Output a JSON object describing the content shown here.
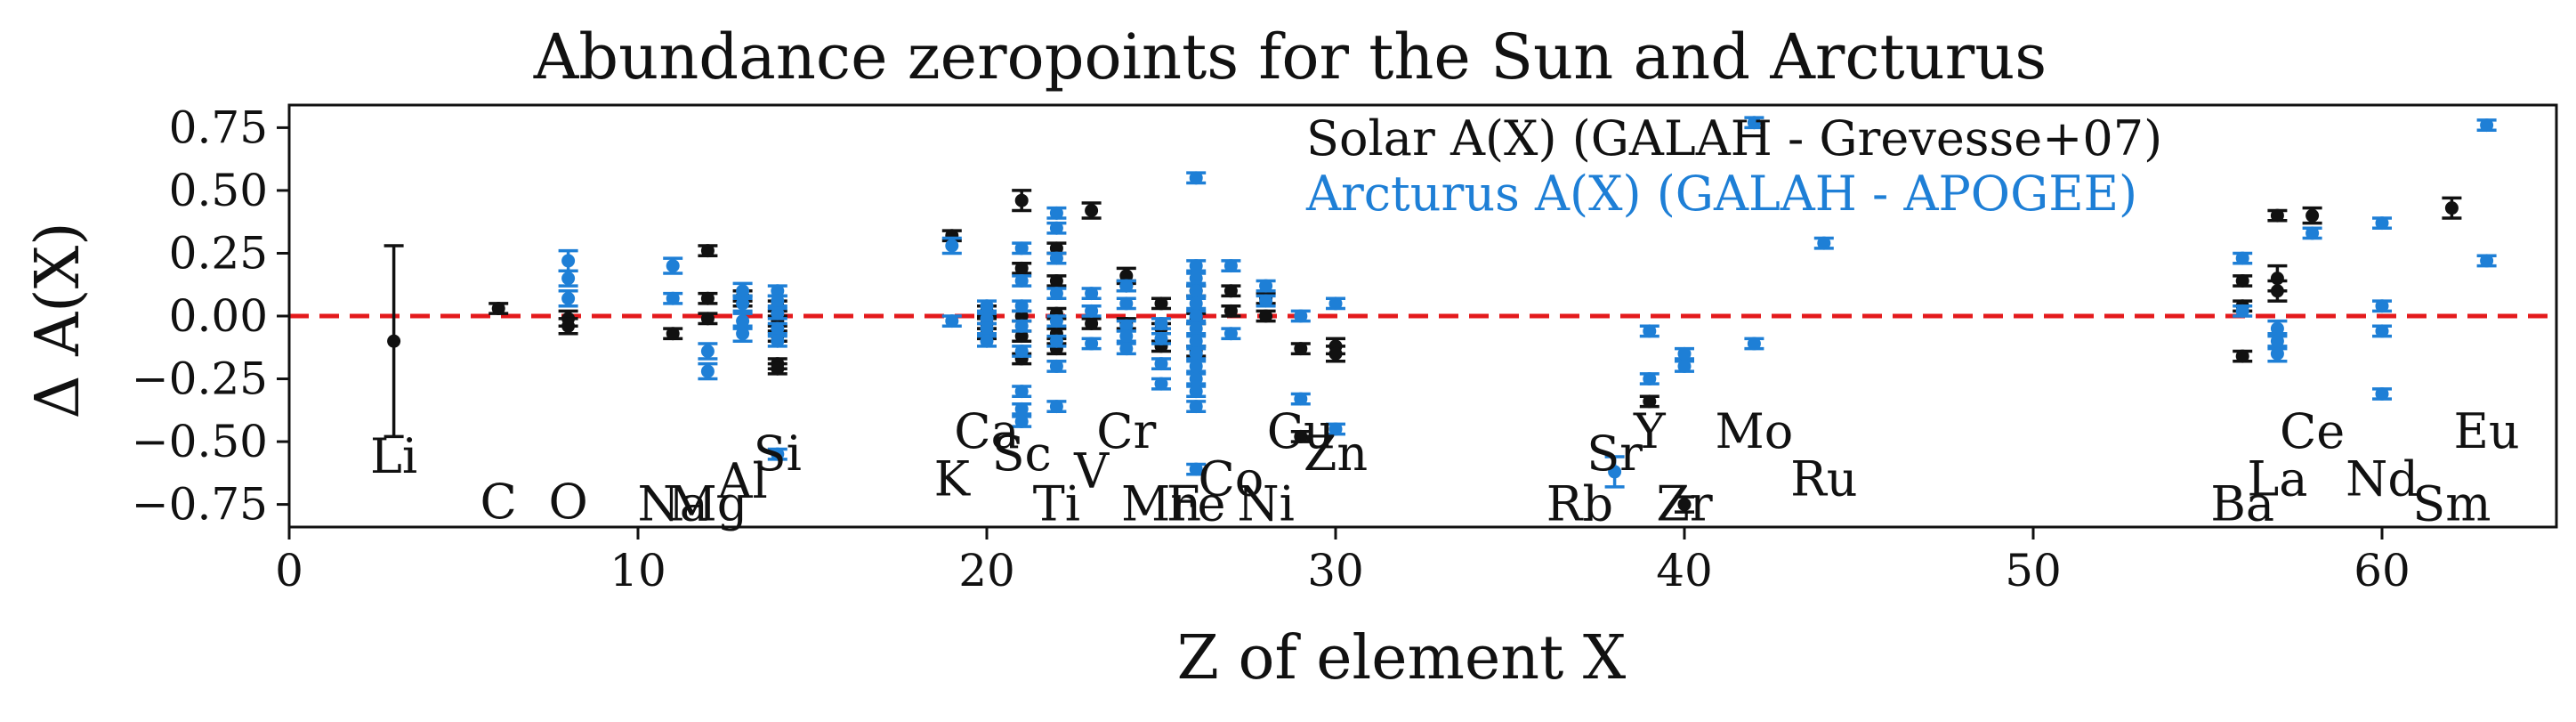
{
  "colors": {
    "solar": "#111111",
    "arcturus": "#1e7fd6",
    "zero_line": "#e41a1c"
  },
  "chart_data": {
    "type": "scatter",
    "title": "Abundance zeropoints for the Sun and Arcturus",
    "xlabel": "Z of element X",
    "ylabel": "Δ A(X)",
    "xlim": [
      0,
      65
    ],
    "ylim": [
      -0.84,
      0.84
    ],
    "xticks": [
      0,
      10,
      20,
      30,
      40,
      50,
      60
    ],
    "yticks": [
      -0.75,
      -0.5,
      -0.25,
      0.0,
      0.25,
      0.5,
      0.75
    ],
    "ytick_labels": [
      "−0.75",
      "−0.50",
      "−0.25",
      "0.00",
      "0.25",
      "0.50",
      "0.75"
    ],
    "grid": false,
    "zero_line": {
      "y": 0,
      "style": "dashed"
    },
    "legend": {
      "placement": "top-center",
      "entries": [
        {
          "text": "Solar A(X) (GALAH - Grevesse+07)",
          "color": "#111111"
        },
        {
          "text": "Arcturus A(X) (GALAH - APOGEE)",
          "color": "#1e7fd6"
        }
      ]
    },
    "element_labels": [
      {
        "text": "Li",
        "x": 3,
        "y": -0.56
      },
      {
        "text": "C",
        "x": 6,
        "y": -0.74
      },
      {
        "text": "O",
        "x": 8,
        "y": -0.74
      },
      {
        "text": "Na",
        "x": 11,
        "y": -0.75
      },
      {
        "text": "Mg",
        "x": 12,
        "y": -0.75
      },
      {
        "text": "Al",
        "x": 13,
        "y": -0.66
      },
      {
        "text": "Si",
        "x": 14,
        "y": -0.55
      },
      {
        "text": "K",
        "x": 19,
        "y": -0.65
      },
      {
        "text": "Ca",
        "x": 20,
        "y": -0.46
      },
      {
        "text": "Sc",
        "x": 21,
        "y": -0.55
      },
      {
        "text": "Ti",
        "x": 22,
        "y": -0.75
      },
      {
        "text": "V",
        "x": 23,
        "y": -0.62
      },
      {
        "text": "Cr",
        "x": 24,
        "y": -0.46
      },
      {
        "text": "Mn",
        "x": 25,
        "y": -0.75
      },
      {
        "text": "Fe",
        "x": 26,
        "y": -0.75
      },
      {
        "text": "Co",
        "x": 27,
        "y": -0.65
      },
      {
        "text": "Ni",
        "x": 28,
        "y": -0.75
      },
      {
        "text": "Cu",
        "x": 29,
        "y": -0.46
      },
      {
        "text": "Zn",
        "x": 30,
        "y": -0.55
      },
      {
        "text": "Rb",
        "x": 37,
        "y": -0.75
      },
      {
        "text": "Sr",
        "x": 38,
        "y": -0.55
      },
      {
        "text": "Y",
        "x": 39,
        "y": -0.46
      },
      {
        "text": "Zr",
        "x": 40,
        "y": -0.75
      },
      {
        "text": "Mo",
        "x": 42,
        "y": -0.46
      },
      {
        "text": "Ru",
        "x": 44,
        "y": -0.65
      },
      {
        "text": "Ba",
        "x": 56,
        "y": -0.75
      },
      {
        "text": "La",
        "x": 57,
        "y": -0.65
      },
      {
        "text": "Ce",
        "x": 58,
        "y": -0.46
      },
      {
        "text": "Nd",
        "x": 60,
        "y": -0.65
      },
      {
        "text": "Sm",
        "x": 62,
        "y": -0.75
      },
      {
        "text": "Eu",
        "x": 63,
        "y": -0.46
      }
    ],
    "series": [
      {
        "name": "Solar A(X) (GALAH - Grevesse+07)",
        "color": "#111111",
        "points": [
          {
            "x": 3,
            "y": -0.1,
            "err": 0.38
          },
          {
            "x": 6,
            "y": 0.03,
            "err": 0.02
          },
          {
            "x": 8,
            "y": -0.01,
            "err": 0.03
          },
          {
            "x": 8,
            "y": -0.04,
            "err": 0.03
          },
          {
            "x": 11,
            "y": -0.07,
            "err": 0.02
          },
          {
            "x": 12,
            "y": 0.07,
            "err": 0.02
          },
          {
            "x": 12,
            "y": -0.01,
            "err": 0.02
          },
          {
            "x": 12,
            "y": 0.26,
            "err": 0.02
          },
          {
            "x": 13,
            "y": 0.08,
            "err": 0.02
          },
          {
            "x": 13,
            "y": 0.06,
            "err": 0.02
          },
          {
            "x": 14,
            "y": 0.04,
            "err": 0.02
          },
          {
            "x": 14,
            "y": -0.02,
            "err": 0.02
          },
          {
            "x": 14,
            "y": -0.08,
            "err": 0.02
          },
          {
            "x": 14,
            "y": -0.19,
            "err": 0.02
          },
          {
            "x": 14,
            "y": -0.21,
            "err": 0.02
          },
          {
            "x": 19,
            "y": 0.32,
            "err": 0.02
          },
          {
            "x": 20,
            "y": -0.03,
            "err": 0.02
          },
          {
            "x": 20,
            "y": 0.02,
            "err": 0.02
          },
          {
            "x": 20,
            "y": -0.07,
            "err": 0.02
          },
          {
            "x": 21,
            "y": 0.46,
            "err": 0.04
          },
          {
            "x": 21,
            "y": 0.19,
            "err": 0.02
          },
          {
            "x": 21,
            "y": 0.0,
            "err": 0.02
          },
          {
            "x": 21,
            "y": -0.08,
            "err": 0.02
          },
          {
            "x": 21,
            "y": -0.17,
            "err": 0.02
          },
          {
            "x": 22,
            "y": 0.27,
            "err": 0.02
          },
          {
            "x": 22,
            "y": 0.14,
            "err": 0.02
          },
          {
            "x": 22,
            "y": 0.01,
            "err": 0.02
          },
          {
            "x": 22,
            "y": -0.07,
            "err": 0.02
          },
          {
            "x": 22,
            "y": -0.13,
            "err": 0.02
          },
          {
            "x": 23,
            "y": 0.42,
            "err": 0.03
          },
          {
            "x": 23,
            "y": -0.03,
            "err": 0.02
          },
          {
            "x": 24,
            "y": 0.16,
            "err": 0.03
          },
          {
            "x": 24,
            "y": 0.12,
            "err": 0.02
          },
          {
            "x": 24,
            "y": -0.03,
            "err": 0.02
          },
          {
            "x": 25,
            "y": 0.05,
            "err": 0.02
          },
          {
            "x": 25,
            "y": -0.05,
            "err": 0.02
          },
          {
            "x": 25,
            "y": -0.12,
            "err": 0.02
          },
          {
            "x": 26,
            "y": 0.1,
            "err": 0.02
          },
          {
            "x": 26,
            "y": -0.01,
            "err": 0.02
          },
          {
            "x": 26,
            "y": -0.14,
            "err": 0.02
          },
          {
            "x": 27,
            "y": 0.1,
            "err": 0.02
          },
          {
            "x": 27,
            "y": 0.02,
            "err": 0.02
          },
          {
            "x": 28,
            "y": 0.07,
            "err": 0.02
          },
          {
            "x": 28,
            "y": 0.0,
            "err": 0.02
          },
          {
            "x": 29,
            "y": -0.13,
            "err": 0.02
          },
          {
            "x": 29,
            "y": -0.48,
            "err": 0.02
          },
          {
            "x": 30,
            "y": -0.12,
            "err": 0.03
          },
          {
            "x": 30,
            "y": -0.15,
            "err": 0.03
          },
          {
            "x": 39,
            "y": -0.34,
            "err": 0.02
          },
          {
            "x": 40,
            "y": -0.75,
            "err": 0.03
          },
          {
            "x": 56,
            "y": 0.14,
            "err": 0.02
          },
          {
            "x": 56,
            "y": 0.04,
            "err": 0.02
          },
          {
            "x": 56,
            "y": -0.16,
            "err": 0.02
          },
          {
            "x": 57,
            "y": 0.4,
            "err": 0.02
          },
          {
            "x": 57,
            "y": 0.15,
            "err": 0.05
          },
          {
            "x": 57,
            "y": 0.1,
            "err": 0.04
          },
          {
            "x": 58,
            "y": 0.4,
            "err": 0.03
          },
          {
            "x": 62,
            "y": 0.43,
            "err": 0.04
          }
        ]
      },
      {
        "name": "Arcturus A(X) (GALAH - APOGEE)",
        "color": "#1e7fd6",
        "points": [
          {
            "x": 8,
            "y": 0.22,
            "err": 0.04
          },
          {
            "x": 8,
            "y": 0.15,
            "err": 0.03
          },
          {
            "x": 8,
            "y": 0.07,
            "err": 0.03
          },
          {
            "x": 11,
            "y": 0.2,
            "err": 0.03
          },
          {
            "x": 11,
            "y": 0.07,
            "err": 0.02
          },
          {
            "x": 12,
            "y": -0.14,
            "err": 0.03
          },
          {
            "x": 12,
            "y": -0.22,
            "err": 0.03
          },
          {
            "x": 13,
            "y": 0.1,
            "err": 0.03
          },
          {
            "x": 13,
            "y": 0.05,
            "err": 0.03
          },
          {
            "x": 13,
            "y": -0.02,
            "err": 0.03
          },
          {
            "x": 13,
            "y": -0.07,
            "err": 0.03
          },
          {
            "x": 14,
            "y": 0.1,
            "err": 0.02
          },
          {
            "x": 14,
            "y": 0.06,
            "err": 0.02
          },
          {
            "x": 14,
            "y": 0.01,
            "err": 0.02
          },
          {
            "x": 14,
            "y": -0.05,
            "err": 0.02
          },
          {
            "x": 14,
            "y": -0.1,
            "err": 0.02
          },
          {
            "x": 14,
            "y": -0.55,
            "err": 0.02
          },
          {
            "x": 19,
            "y": 0.28,
            "err": 0.03
          },
          {
            "x": 19,
            "y": -0.02,
            "err": 0.02
          },
          {
            "x": 20,
            "y": 0.04,
            "err": 0.02
          },
          {
            "x": 20,
            "y": -0.01,
            "err": 0.02
          },
          {
            "x": 20,
            "y": -0.05,
            "err": 0.02
          },
          {
            "x": 20,
            "y": -0.1,
            "err": 0.02
          },
          {
            "x": 21,
            "y": 0.27,
            "err": 0.02
          },
          {
            "x": 21,
            "y": 0.14,
            "err": 0.02
          },
          {
            "x": 21,
            "y": 0.04,
            "err": 0.02
          },
          {
            "x": 21,
            "y": -0.04,
            "err": 0.02
          },
          {
            "x": 21,
            "y": -0.14,
            "err": 0.02
          },
          {
            "x": 21,
            "y": -0.3,
            "err": 0.02
          },
          {
            "x": 21,
            "y": -0.37,
            "err": 0.02
          },
          {
            "x": 21,
            "y": -0.42,
            "err": 0.02
          },
          {
            "x": 22,
            "y": 0.41,
            "err": 0.02
          },
          {
            "x": 22,
            "y": 0.35,
            "err": 0.02
          },
          {
            "x": 22,
            "y": 0.23,
            "err": 0.02
          },
          {
            "x": 22,
            "y": 0.09,
            "err": 0.02
          },
          {
            "x": 22,
            "y": -0.02,
            "err": 0.02
          },
          {
            "x": 22,
            "y": -0.1,
            "err": 0.02
          },
          {
            "x": 22,
            "y": -0.2,
            "err": 0.02
          },
          {
            "x": 22,
            "y": -0.36,
            "err": 0.02
          },
          {
            "x": 23,
            "y": 0.09,
            "err": 0.02
          },
          {
            "x": 23,
            "y": 0.02,
            "err": 0.02
          },
          {
            "x": 23,
            "y": -0.11,
            "err": 0.02
          },
          {
            "x": 24,
            "y": 0.12,
            "err": 0.02
          },
          {
            "x": 24,
            "y": 0.05,
            "err": 0.02
          },
          {
            "x": 24,
            "y": -0.04,
            "err": 0.02
          },
          {
            "x": 24,
            "y": -0.08,
            "err": 0.02
          },
          {
            "x": 24,
            "y": -0.13,
            "err": 0.02
          },
          {
            "x": 25,
            "y": -0.03,
            "err": 0.02
          },
          {
            "x": 25,
            "y": -0.09,
            "err": 0.02
          },
          {
            "x": 25,
            "y": -0.19,
            "err": 0.02
          },
          {
            "x": 25,
            "y": -0.27,
            "err": 0.02
          },
          {
            "x": 26,
            "y": 0.55,
            "err": 0.02
          },
          {
            "x": 26,
            "y": 0.2,
            "err": 0.02
          },
          {
            "x": 26,
            "y": 0.15,
            "err": 0.02
          },
          {
            "x": 26,
            "y": 0.1,
            "err": 0.02
          },
          {
            "x": 26,
            "y": 0.05,
            "err": 0.02
          },
          {
            "x": 26,
            "y": 0.0,
            "err": 0.02
          },
          {
            "x": 26,
            "y": -0.05,
            "err": 0.02
          },
          {
            "x": 26,
            "y": -0.1,
            "err": 0.02
          },
          {
            "x": 26,
            "y": -0.15,
            "err": 0.02
          },
          {
            "x": 26,
            "y": -0.2,
            "err": 0.02
          },
          {
            "x": 26,
            "y": -0.25,
            "err": 0.02
          },
          {
            "x": 26,
            "y": -0.3,
            "err": 0.02
          },
          {
            "x": 26,
            "y": -0.36,
            "err": 0.02
          },
          {
            "x": 26,
            "y": -0.61,
            "err": 0.02
          },
          {
            "x": 27,
            "y": 0.2,
            "err": 0.02
          },
          {
            "x": 27,
            "y": -0.07,
            "err": 0.02
          },
          {
            "x": 28,
            "y": 0.12,
            "err": 0.02
          },
          {
            "x": 28,
            "y": 0.06,
            "err": 0.02
          },
          {
            "x": 29,
            "y": 0.0,
            "err": 0.02
          },
          {
            "x": 29,
            "y": -0.33,
            "err": 0.02
          },
          {
            "x": 30,
            "y": 0.05,
            "err": 0.02
          },
          {
            "x": 30,
            "y": -0.45,
            "err": 0.02
          },
          {
            "x": 38,
            "y": -0.62,
            "err": 0.06
          },
          {
            "x": 39,
            "y": -0.06,
            "err": 0.02
          },
          {
            "x": 39,
            "y": -0.25,
            "err": 0.02
          },
          {
            "x": 40,
            "y": -0.15,
            "err": 0.02
          },
          {
            "x": 40,
            "y": -0.2,
            "err": 0.02
          },
          {
            "x": 42,
            "y": 0.77,
            "err": 0.02
          },
          {
            "x": 42,
            "y": -0.11,
            "err": 0.02
          },
          {
            "x": 44,
            "y": 0.29,
            "err": 0.02
          },
          {
            "x": 56,
            "y": 0.23,
            "err": 0.02
          },
          {
            "x": 56,
            "y": 0.02,
            "err": 0.02
          },
          {
            "x": 57,
            "y": -0.05,
            "err": 0.03
          },
          {
            "x": 57,
            "y": -0.1,
            "err": 0.03
          },
          {
            "x": 57,
            "y": -0.15,
            "err": 0.03
          },
          {
            "x": 58,
            "y": 0.33,
            "err": 0.02
          },
          {
            "x": 60,
            "y": 0.37,
            "err": 0.02
          },
          {
            "x": 60,
            "y": 0.04,
            "err": 0.02
          },
          {
            "x": 60,
            "y": -0.06,
            "err": 0.02
          },
          {
            "x": 60,
            "y": -0.31,
            "err": 0.02
          },
          {
            "x": 63,
            "y": 0.76,
            "err": 0.02
          },
          {
            "x": 63,
            "y": 0.22,
            "err": 0.02
          }
        ]
      }
    ]
  }
}
